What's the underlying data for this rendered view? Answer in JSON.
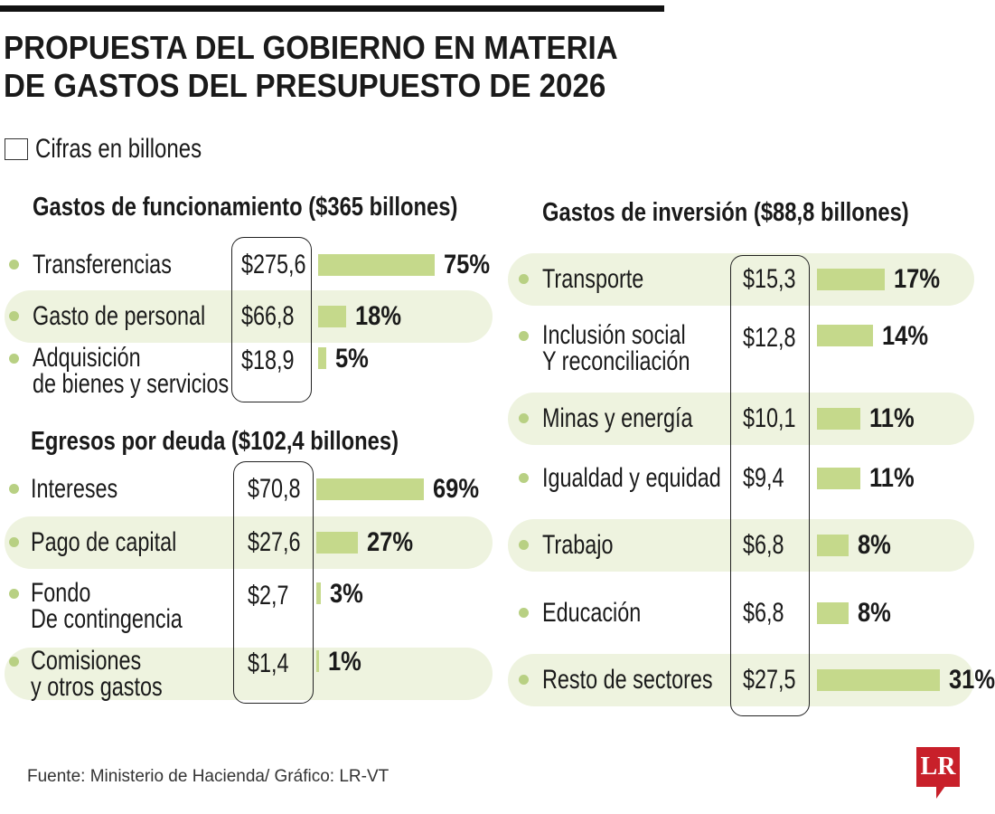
{
  "title_line1": "PROPUESTA DEL GOBIERNO EN MATERIA",
  "title_line2": "DE GASTOS DEL PRESUPUESTO DE 2026",
  "legend": "Cifras en billones",
  "source": "Fuente: Ministerio de Hacienda/ Gráfico: LR-VT",
  "logo": "LR",
  "colors": {
    "bar": "#c5d98b",
    "band": "#eef3df",
    "dot": "#b8d083",
    "logo": "#c8202a"
  },
  "chart_data": [
    {
      "type": "bar",
      "title": "Gastos de funcionamiento ($365 billones)",
      "categories": [
        "Transferencias",
        "Gasto de personal",
        "Adquisición\nde bienes y servicios"
      ],
      "values": [
        "$275,6",
        "$66,8",
        "$18,9"
      ],
      "percent": [
        "75%",
        "18%",
        "5%"
      ],
      "percent_values": [
        75,
        18,
        5
      ]
    },
    {
      "type": "bar",
      "title": "Egresos por deuda ($102,4 billones)",
      "categories": [
        "Intereses",
        "Pago de capital",
        "Fondo\nDe contingencia",
        "Comisiones\ny otros gastos"
      ],
      "values": [
        "$70,8",
        "$27,6",
        "$2,7",
        "$1,4"
      ],
      "percent": [
        "69%",
        "27%",
        "3%",
        "1%"
      ],
      "percent_values": [
        69,
        27,
        3,
        1
      ]
    },
    {
      "type": "bar",
      "title": "Gastos de inversión ($88,8 billones)",
      "categories": [
        "Transporte",
        "Inclusión social\nY reconciliación",
        "Minas y energía",
        "Igualdad y equidad",
        "Trabajo",
        "Educación",
        "Resto de sectores"
      ],
      "values": [
        "$15,3",
        "$12,8",
        "$10,1",
        "$9,4",
        "$6,8",
        "$6,8",
        "$27,5"
      ],
      "percent": [
        "17%",
        "14%",
        "11%",
        "11%",
        "8%",
        "8%",
        "31%"
      ],
      "percent_values": [
        17,
        14,
        11,
        11,
        8,
        8,
        31
      ]
    }
  ]
}
